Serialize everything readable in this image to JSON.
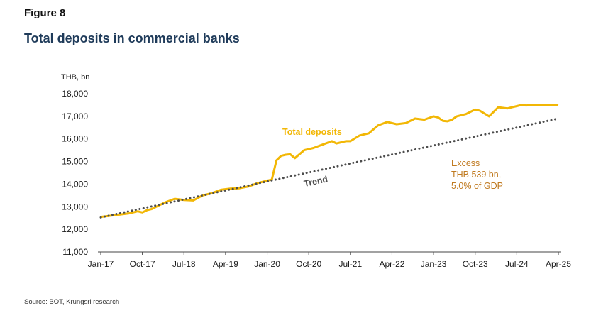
{
  "figure_label": "Figure 8",
  "source": "Source: BOT, Krungsri research",
  "colors": {
    "deposits": "#f2b705",
    "trend": "#4d4d4d",
    "excess": "#c07a20",
    "title": "#1f3b5a"
  },
  "chart_data": {
    "type": "line",
    "title": "Total deposits in commercial banks",
    "ylabel": "THB, bn",
    "xlabel": "",
    "ylim": [
      11000,
      18000
    ],
    "yticks": [
      11000,
      12000,
      13000,
      14000,
      15000,
      16000,
      17000,
      18000
    ],
    "ytick_labels": [
      "11,000",
      "12,000",
      "13,000",
      "14,000",
      "15,000",
      "16,000",
      "17,000",
      "18,000"
    ],
    "x_start": "Jan-17",
    "x_end": "Apr-25",
    "xtick_labels": [
      "Jan-17",
      "Oct-17",
      "Jul-18",
      "Apr-19",
      "Jan-20",
      "Oct-20",
      "Jul-21",
      "Apr-22",
      "Jan-23",
      "Oct-23",
      "Jul-24",
      "Apr-25"
    ],
    "xtick_month_index": [
      0,
      9,
      18,
      27,
      36,
      45,
      54,
      63,
      72,
      81,
      90,
      99
    ],
    "series": [
      {
        "name": "Total deposits",
        "style": "solid",
        "month_index": [
          0,
          2,
          4,
          6,
          8,
          9,
          10,
          11,
          12,
          14,
          16,
          18,
          20,
          22,
          23,
          24,
          26,
          28,
          30,
          32,
          34,
          36,
          37,
          38,
          39,
          40,
          41,
          42,
          44,
          46,
          48,
          50,
          51,
          52,
          53,
          54,
          56,
          57,
          58,
          60,
          62,
          64,
          66,
          68,
          70,
          72,
          73,
          74,
          75,
          76,
          77,
          78,
          79,
          80,
          81,
          82,
          84,
          86,
          88,
          89,
          90,
          91,
          92,
          94,
          96,
          98,
          99
        ],
        "values": [
          12550,
          12600,
          12650,
          12700,
          12800,
          12750,
          12850,
          12900,
          13000,
          13200,
          13350,
          13300,
          13280,
          13500,
          13550,
          13600,
          13750,
          13800,
          13820,
          13900,
          14050,
          14150,
          14200,
          15050,
          15250,
          15300,
          15320,
          15150,
          15500,
          15600,
          15750,
          15900,
          15800,
          15850,
          15900,
          15900,
          16150,
          16200,
          16250,
          16600,
          16750,
          16650,
          16700,
          16900,
          16850,
          17000,
          16950,
          16800,
          16780,
          16850,
          17000,
          17050,
          17100,
          17200,
          17300,
          17250,
          17000,
          17400,
          17350,
          17400,
          17450,
          17500,
          17480,
          17500,
          17510,
          17500,
          17480
        ]
      },
      {
        "name": "Trend",
        "style": "dotted",
        "month_index": [
          0,
          99
        ],
        "values": [
          12530,
          16900
        ]
      }
    ],
    "annotations": {
      "deposits_label": "Total deposits",
      "trend_label": "Trend",
      "excess_lines": [
        "Excess",
        "THB 539 bn,",
        "5.0% of GDP"
      ]
    }
  }
}
